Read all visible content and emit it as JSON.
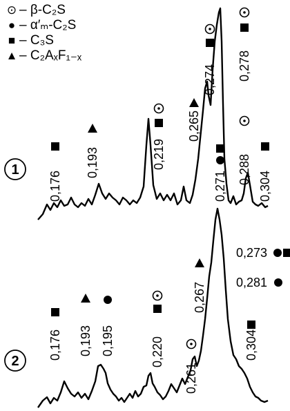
{
  "legend": [
    {
      "symbol": "⊙",
      "icon": "circled-dot-icon",
      "label": "– β-C₂S"
    },
    {
      "symbol": "●",
      "icon": "filled-circle-icon",
      "label": "– α′ₘ-C₂S"
    },
    {
      "symbol": "■",
      "icon": "filled-square-icon",
      "label": "– C₃S"
    },
    {
      "symbol": "▲",
      "icon": "filled-triangle-icon",
      "label": "– C₂AₓF₁₋ₓ"
    }
  ],
  "chart_data": [
    {
      "type": "line",
      "curve_label": "1",
      "peaks": [
        {
          "d": "0,176",
          "symbols": [
            "■"
          ]
        },
        {
          "d": "0,193",
          "symbols": [
            "▲"
          ]
        },
        {
          "d": "0,219",
          "symbols": [
            "■",
            "⊙"
          ]
        },
        {
          "d": "0,265",
          "symbols": [
            "▲"
          ]
        },
        {
          "d": "0,274",
          "symbols": [
            "■",
            "⊙"
          ]
        },
        {
          "d": "0,271",
          "symbols": [
            "●",
            "■"
          ]
        },
        {
          "d": "0,278",
          "symbols": [
            "■",
            "⊙"
          ]
        },
        {
          "d": "0,288",
          "symbols": [
            "⊙"
          ]
        },
        {
          "d": "0,304",
          "symbols": [
            "■"
          ]
        }
      ]
    },
    {
      "type": "line",
      "curve_label": "2",
      "peaks": [
        {
          "d": "0,176",
          "symbols": [
            "■"
          ]
        },
        {
          "d": "0,193",
          "symbols": [
            "▲"
          ]
        },
        {
          "d": "0,195",
          "symbols": [
            "●"
          ]
        },
        {
          "d": "0,220",
          "symbols": [
            "■",
            "⊙"
          ]
        },
        {
          "d": "0,261",
          "symbols": [
            "⊙"
          ]
        },
        {
          "d": "0,267",
          "symbols": [
            "▲"
          ]
        },
        {
          "d": "0,273",
          "symbols": [
            "●",
            "■"
          ]
        },
        {
          "d": "0,281",
          "symbols": [
            "●"
          ]
        },
        {
          "d": "0,304",
          "symbols": [
            "■"
          ]
        }
      ]
    }
  ]
}
